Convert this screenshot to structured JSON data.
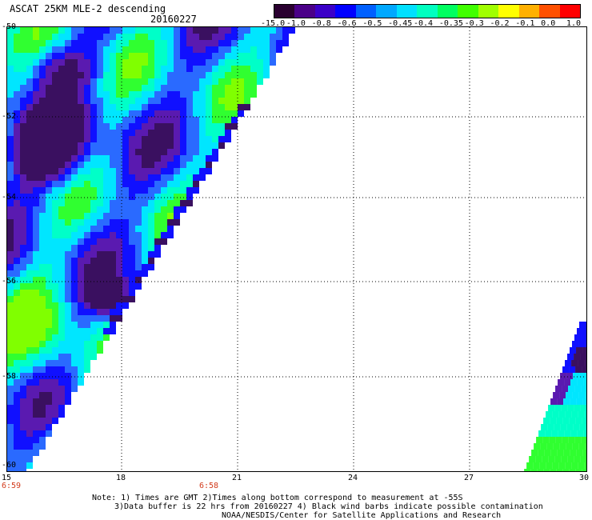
{
  "header": {
    "title": "ASCAT 25KM MLE-2 descending",
    "date": "20160227"
  },
  "colorbar": {
    "colors": [
      "#2a0030",
      "#4a0088",
      "#3a00c8",
      "#0000ff",
      "#0060ff",
      "#00a8ff",
      "#00e0ff",
      "#00ffc0",
      "#00ff60",
      "#40ff00",
      "#a0ff00",
      "#ffff00",
      "#ffb000",
      "#ff5000",
      "#ff0000"
    ],
    "labels": [
      "-15.0",
      "-1.0",
      "-0.8",
      "-0.6",
      "-0.5",
      "-0.45",
      "-0.4",
      "-0.35",
      "-0.3",
      "-0.2",
      "-0.1",
      "0.0",
      "1.0"
    ]
  },
  "axes": {
    "lat_ticks": [
      "-50",
      "-52",
      "-54",
      "-56",
      "-58",
      "-60"
    ],
    "lon_ticks": [
      "15",
      "18",
      "21",
      "24",
      "27",
      "30"
    ],
    "time_ticks": [
      "6:59",
      "6:58"
    ]
  },
  "notes": {
    "line1": "Note: 1) Times are GMT 2)Times along bottom correspond to measurement at -55S",
    "line2": "3)Data buffer is 22 hrs from 20160227 4) Black wind barbs indicate possible contamination",
    "line3": "NOAA/NESDIS/Center for Satellite Applications and Research"
  },
  "map_colors": {
    "deep": "#3a1060",
    "purple": "#5a1ab0",
    "blue": "#1010ff",
    "midblue": "#2a6aff",
    "cyan": "#00e6ff",
    "teal": "#00ffc8",
    "green": "#30ff30",
    "lime": "#80ff00"
  }
}
